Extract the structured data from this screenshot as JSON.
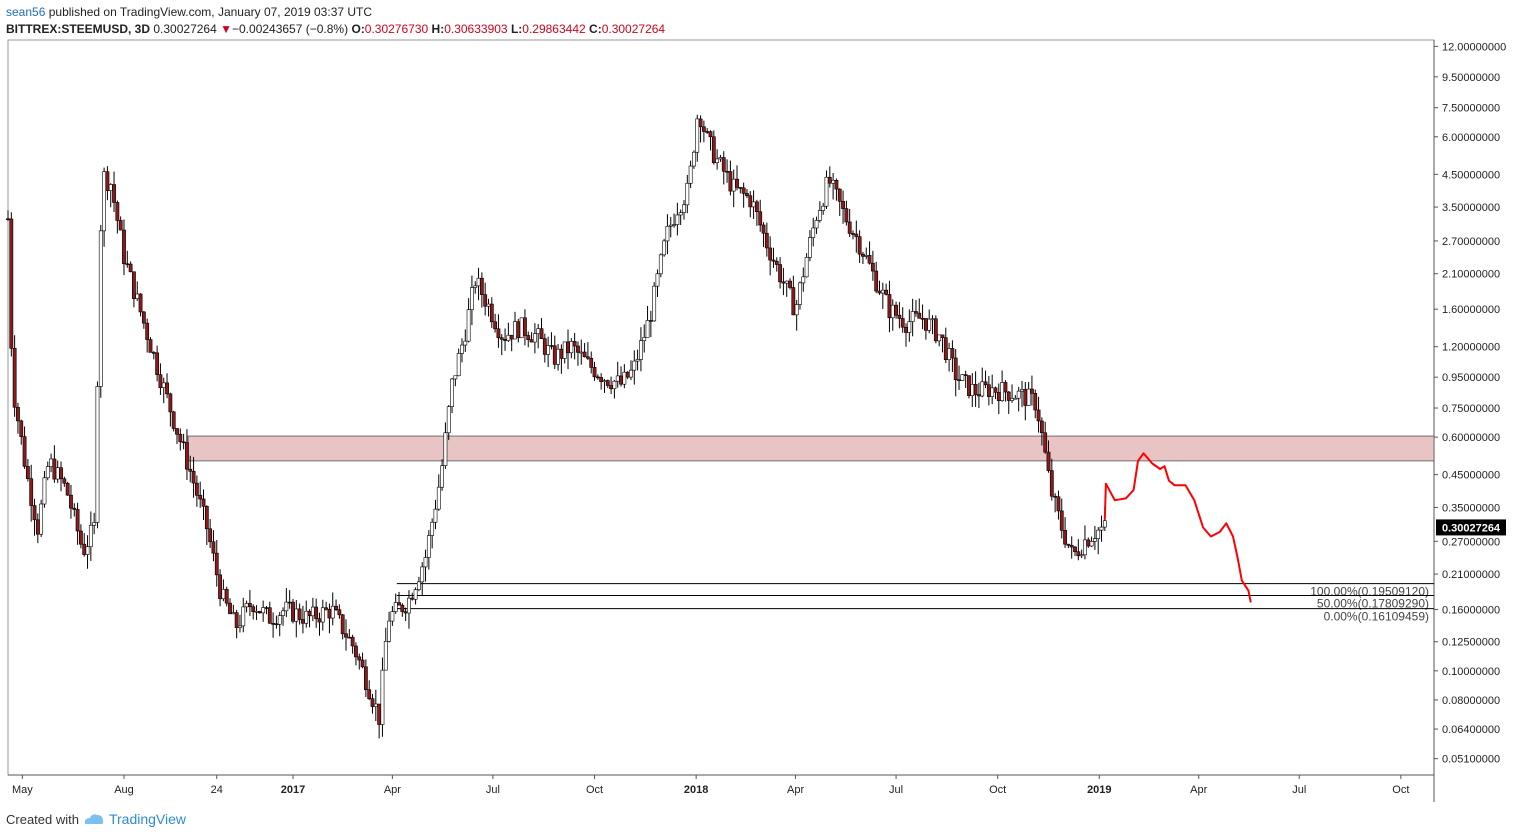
{
  "header": {
    "user": "sean56",
    "published_text": "published on TradingView.com, January 07, 2019 03:37 UTC",
    "symbol": "BITTREX:STEEMUSD, 3D",
    "last": "0.30027264",
    "change_arrow": "▼",
    "change": "−0.00243657 (−0.8%)",
    "o_label": "O:",
    "o_val": "0.30276730",
    "h_label": "H:",
    "h_val": "0.30633903",
    "l_label": "L:",
    "l_val": "0.29863442",
    "c_label": "C:",
    "c_val": "0.30027264"
  },
  "footer": {
    "created_with": "Created with",
    "logo_icon": "tradingview-cloud-icon",
    "brand": "TradingView"
  },
  "colors": {
    "up": "#ffffff",
    "down": "#8b1a1a",
    "wick": "#000000",
    "zone_fill": "#e8c4c4",
    "zone_border": "#555555",
    "drawing": "#ff0000",
    "price_badge": "#000000"
  },
  "chart_data": {
    "type": "candlestick",
    "scale": "log",
    "y_range": [
      0.045,
      12.6
    ],
    "x_range": [
      "2016-04-18",
      "2019-10-31"
    ],
    "x_tick_labels": [
      {
        "date": "2016-05-01",
        "label": "May",
        "bold": false
      },
      {
        "date": "2016-08-01",
        "label": "Aug",
        "bold": false
      },
      {
        "date": "2016-10-24",
        "label": "24",
        "bold": false
      },
      {
        "date": "2017-01-01",
        "label": "2017",
        "bold": true
      },
      {
        "date": "2017-04-01",
        "label": "Apr",
        "bold": false
      },
      {
        "date": "2017-07-01",
        "label": "Jul",
        "bold": false
      },
      {
        "date": "2017-10-01",
        "label": "Oct",
        "bold": false
      },
      {
        "date": "2018-01-01",
        "label": "2018",
        "bold": true
      },
      {
        "date": "2018-04-01",
        "label": "Apr",
        "bold": false
      },
      {
        "date": "2018-07-01",
        "label": "Jul",
        "bold": false
      },
      {
        "date": "2018-10-01",
        "label": "Oct",
        "bold": false
      },
      {
        "date": "2019-01-01",
        "label": "2019",
        "bold": true
      },
      {
        "date": "2019-04-01",
        "label": "Apr",
        "bold": false
      },
      {
        "date": "2019-07-01",
        "label": "Jul",
        "bold": false
      },
      {
        "date": "2019-10-01",
        "label": "Oct",
        "bold": false
      }
    ],
    "y_tick_labels": [
      "12.00000000",
      "9.50000000",
      "7.50000000",
      "6.00000000",
      "4.50000000",
      "3.50000000",
      "2.70000000",
      "2.10000000",
      "1.60000000",
      "1.20000000",
      "0.95000000",
      "0.75000000",
      "0.60000000",
      "0.45000000",
      "0.35000000",
      "0.27000000",
      "0.21000000",
      "0.16000000",
      "0.12500000",
      "0.10000000",
      "0.08000000",
      "0.06400000",
      "0.05100000"
    ],
    "last_price_label": "0.30027264",
    "last_price": 0.30027264,
    "price_path": [
      [
        "2016-04-18",
        3.2
      ],
      [
        "2016-04-22",
        0.9
      ],
      [
        "2016-05-05",
        0.45
      ],
      [
        "2016-05-15",
        0.3
      ],
      [
        "2016-05-25",
        0.5
      ],
      [
        "2016-06-10",
        0.4
      ],
      [
        "2016-06-25",
        0.25
      ],
      [
        "2016-07-05",
        0.3
      ],
      [
        "2016-07-12",
        4.5
      ],
      [
        "2016-07-20",
        4.2
      ],
      [
        "2016-08-01",
        2.4
      ],
      [
        "2016-08-20",
        1.4
      ],
      [
        "2016-09-05",
        0.9
      ],
      [
        "2016-09-20",
        0.6
      ],
      [
        "2016-10-01",
        0.45
      ],
      [
        "2016-10-15",
        0.3
      ],
      [
        "2016-10-28",
        0.18
      ],
      [
        "2016-11-10",
        0.14
      ],
      [
        "2016-11-25",
        0.17
      ],
      [
        "2016-12-10",
        0.15
      ],
      [
        "2016-12-25",
        0.16
      ],
      [
        "2017-01-15",
        0.15
      ],
      [
        "2017-02-05",
        0.16
      ],
      [
        "2017-02-25",
        0.12
      ],
      [
        "2017-03-10",
        0.09
      ],
      [
        "2017-03-20",
        0.07
      ],
      [
        "2017-03-28",
        0.15
      ],
      [
        "2017-04-15",
        0.17
      ],
      [
        "2017-05-01",
        0.24
      ],
      [
        "2017-05-15",
        0.45
      ],
      [
        "2017-05-25",
        0.9
      ],
      [
        "2017-06-05",
        1.3
      ],
      [
        "2017-06-15",
        2.0
      ],
      [
        "2017-06-25",
        1.7
      ],
      [
        "2017-07-10",
        1.3
      ],
      [
        "2017-07-25",
        1.4
      ],
      [
        "2017-08-10",
        1.3
      ],
      [
        "2017-08-25",
        1.1
      ],
      [
        "2017-09-10",
        1.2
      ],
      [
        "2017-09-25",
        1.05
      ],
      [
        "2017-10-10",
        0.95
      ],
      [
        "2017-10-25",
        0.9
      ],
      [
        "2017-11-05",
        1.0
      ],
      [
        "2017-11-20",
        1.5
      ],
      [
        "2017-12-05",
        2.8
      ],
      [
        "2017-12-15",
        3.5
      ],
      [
        "2017-12-25",
        4.0
      ],
      [
        "2018-01-03",
        7.5
      ],
      [
        "2018-01-10",
        6.0
      ],
      [
        "2018-01-20",
        5.0
      ],
      [
        "2018-02-05",
        4.0
      ],
      [
        "2018-02-20",
        3.7
      ],
      [
        "2018-03-05",
        2.7
      ],
      [
        "2018-03-20",
        2.0
      ],
      [
        "2018-04-01",
        1.6
      ],
      [
        "2018-04-10",
        2.3
      ],
      [
        "2018-04-20",
        3.3
      ],
      [
        "2018-05-01",
        4.3
      ],
      [
        "2018-05-15",
        3.3
      ],
      [
        "2018-05-28",
        2.7
      ],
      [
        "2018-06-10",
        2.1
      ],
      [
        "2018-06-25",
        1.6
      ],
      [
        "2018-07-10",
        1.45
      ],
      [
        "2018-07-25",
        1.5
      ],
      [
        "2018-08-10",
        1.3
      ],
      [
        "2018-08-25",
        0.95
      ],
      [
        "2018-09-10",
        0.85
      ],
      [
        "2018-09-25",
        0.87
      ],
      [
        "2018-10-10",
        0.85
      ],
      [
        "2018-10-25",
        0.82
      ],
      [
        "2018-11-05",
        0.78
      ],
      [
        "2018-11-12",
        0.55
      ],
      [
        "2018-11-18",
        0.4
      ],
      [
        "2018-11-28",
        0.3
      ],
      [
        "2018-12-08",
        0.24
      ],
      [
        "2018-12-18",
        0.27
      ],
      [
        "2018-12-28",
        0.29
      ],
      [
        "2019-01-06",
        0.3003
      ]
    ],
    "resistance_zone": [
      0.5,
      0.605
    ],
    "fib_levels": [
      {
        "label": "100.00%(0.19509120)",
        "value": 0.1950912
      },
      {
        "label": "50.00%(0.17809290)",
        "value": 0.1780929
      },
      {
        "label": "0.00%(0.16109459)",
        "value": 0.16109459
      }
    ],
    "projection_path": [
      [
        "2019-01-06",
        0.32
      ],
      [
        "2019-01-07",
        0.42
      ],
      [
        "2019-01-15",
        0.37
      ],
      [
        "2019-01-25",
        0.375
      ],
      [
        "2019-02-01",
        0.4
      ],
      [
        "2019-02-05",
        0.5
      ],
      [
        "2019-02-10",
        0.53
      ],
      [
        "2019-02-18",
        0.49
      ],
      [
        "2019-02-25",
        0.47
      ],
      [
        "2019-03-01",
        0.48
      ],
      [
        "2019-03-05",
        0.43
      ],
      [
        "2019-03-10",
        0.415
      ],
      [
        "2019-03-20",
        0.415
      ],
      [
        "2019-03-28",
        0.37
      ],
      [
        "2019-04-05",
        0.3
      ],
      [
        "2019-04-12",
        0.28
      ],
      [
        "2019-04-20",
        0.29
      ],
      [
        "2019-04-26",
        0.31
      ],
      [
        "2019-05-02",
        0.28
      ],
      [
        "2019-05-06",
        0.24
      ],
      [
        "2019-05-10",
        0.2
      ],
      [
        "2019-05-16",
        0.185
      ],
      [
        "2019-05-18",
        0.17
      ]
    ]
  }
}
